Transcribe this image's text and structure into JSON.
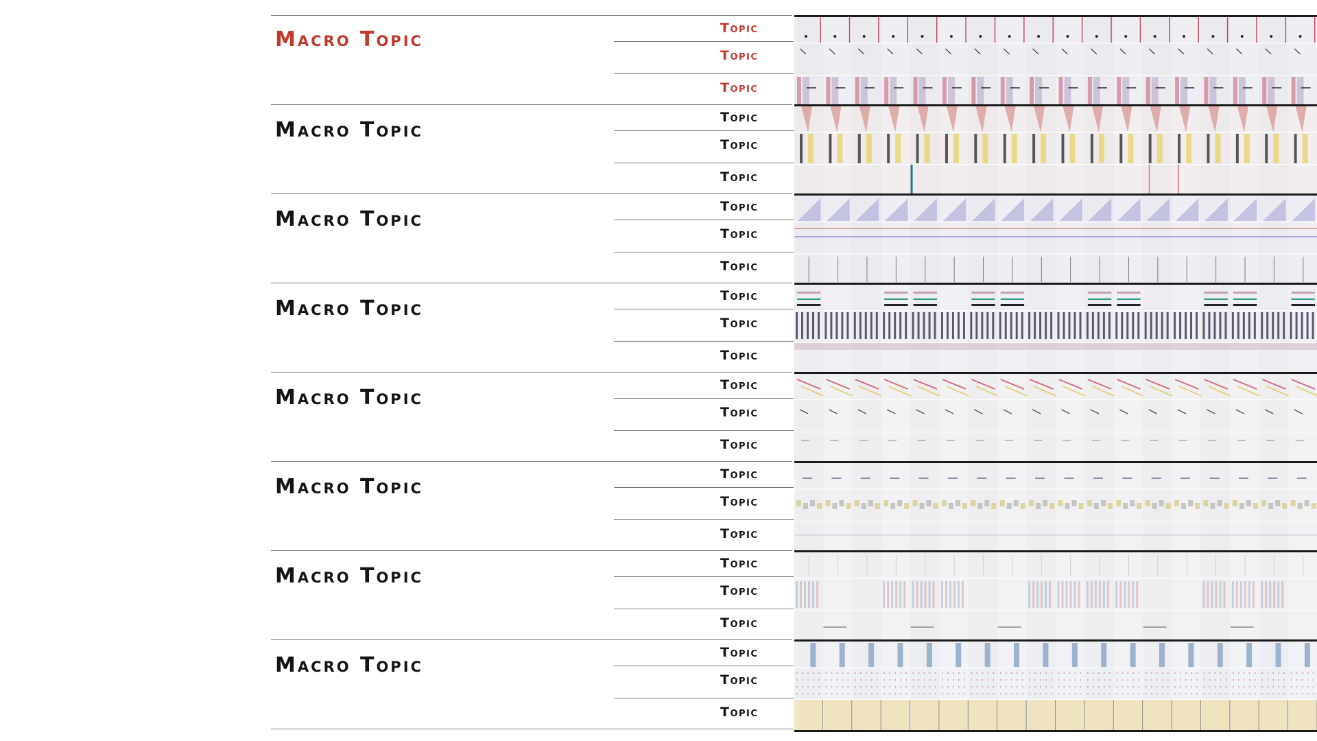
{
  "blocks": [
    {
      "macro": "Macro Topic",
      "active": true,
      "topics": [
        "Topic",
        "Topic",
        "Topic"
      ]
    },
    {
      "macro": "Macro Topic",
      "active": false,
      "topics": [
        "Topic",
        "Topic",
        "Topic"
      ]
    },
    {
      "macro": "Macro Topic",
      "active": false,
      "topics": [
        "Topic",
        "Topic",
        "Topic"
      ]
    },
    {
      "macro": "Macro Topic",
      "active": false,
      "topics": [
        "Topic",
        "Topic",
        "Topic"
      ]
    },
    {
      "macro": "Macro Topic",
      "active": false,
      "topics": [
        "Topic",
        "Topic",
        "Topic"
      ]
    },
    {
      "macro": "Macro Topic",
      "active": false,
      "topics": [
        "Topic",
        "Topic",
        "Topic"
      ]
    },
    {
      "macro": "Macro Topic",
      "active": false,
      "topics": [
        "Topic",
        "Topic",
        "Topic"
      ]
    },
    {
      "macro": "Macro Topic",
      "active": false,
      "topics": [
        "Topic",
        "Topic",
        "Topic"
      ]
    }
  ],
  "colors": {
    "active_text": "#c0392b",
    "text": "#141414",
    "rule": "#7a7a7a",
    "strip_border": "#1a1a1a"
  }
}
